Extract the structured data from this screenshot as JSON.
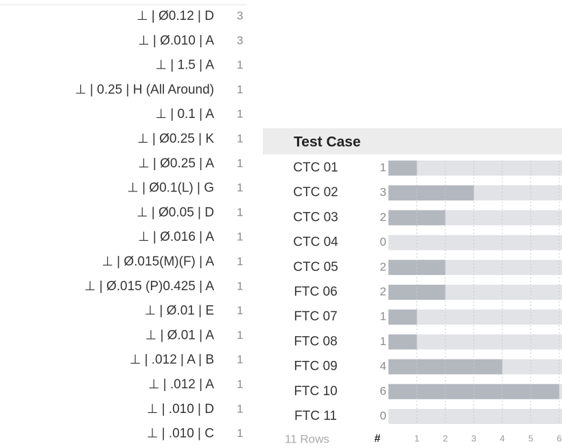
{
  "left_list": {
    "rows": [
      {
        "label": "⊥ | Ø0.12 | D",
        "count": 3
      },
      {
        "label": "⊥ | Ø.010 | A",
        "count": 3
      },
      {
        "label": "⊥ | 1.5 | A",
        "count": 1
      },
      {
        "label": "⊥ | 0.25 | H (All Around)",
        "count": 1
      },
      {
        "label": "⊥ | 0.1 | A",
        "count": 1
      },
      {
        "label": "⊥ | Ø0.25 | K",
        "count": 1
      },
      {
        "label": "⊥ | Ø0.25 | A",
        "count": 1
      },
      {
        "label": "⊥ | Ø0.1(L) | G",
        "count": 1
      },
      {
        "label": "⊥ | Ø0.05 | D",
        "count": 1
      },
      {
        "label": "⊥ | Ø.016 | A",
        "count": 1
      },
      {
        "label": "⊥ | Ø.015(M)(F) | A",
        "count": 1
      },
      {
        "label": "⊥ | Ø.015 (P)0.425 | A",
        "count": 1
      },
      {
        "label": "⊥ | Ø.01 | E",
        "count": 1
      },
      {
        "label": "⊥ | Ø.01 | A",
        "count": 1
      },
      {
        "label": "⊥ | .012 | A | B",
        "count": 1
      },
      {
        "label": "⊥ | .012 | A",
        "count": 1
      },
      {
        "label": "⊥ | .010 | D",
        "count": 1
      },
      {
        "label": "⊥ | .010 | C",
        "count": 1
      }
    ]
  },
  "test_case_table": {
    "header": "Test Case",
    "rows": [
      {
        "name": "CTC 01",
        "count": 1
      },
      {
        "name": "CTC 02",
        "count": 3
      },
      {
        "name": "CTC 03",
        "count": 2
      },
      {
        "name": "CTC 04",
        "count": 0
      },
      {
        "name": "CTC 05",
        "count": 2
      },
      {
        "name": "FTC 06",
        "count": 2
      },
      {
        "name": "FTC 07",
        "count": 1
      },
      {
        "name": "FTC 08",
        "count": 1
      },
      {
        "name": "FTC 09",
        "count": 4
      },
      {
        "name": "FTC 10",
        "count": 6
      },
      {
        "name": "FTC 11",
        "count": 0
      }
    ],
    "footer": "11 Rows",
    "count_header": "#",
    "xlim": [
      0,
      6
    ],
    "xticks": [
      1,
      2,
      3,
      4,
      5,
      6
    ],
    "bar_color": "#b3b8bf",
    "track_color": "#e1e3e6"
  }
}
